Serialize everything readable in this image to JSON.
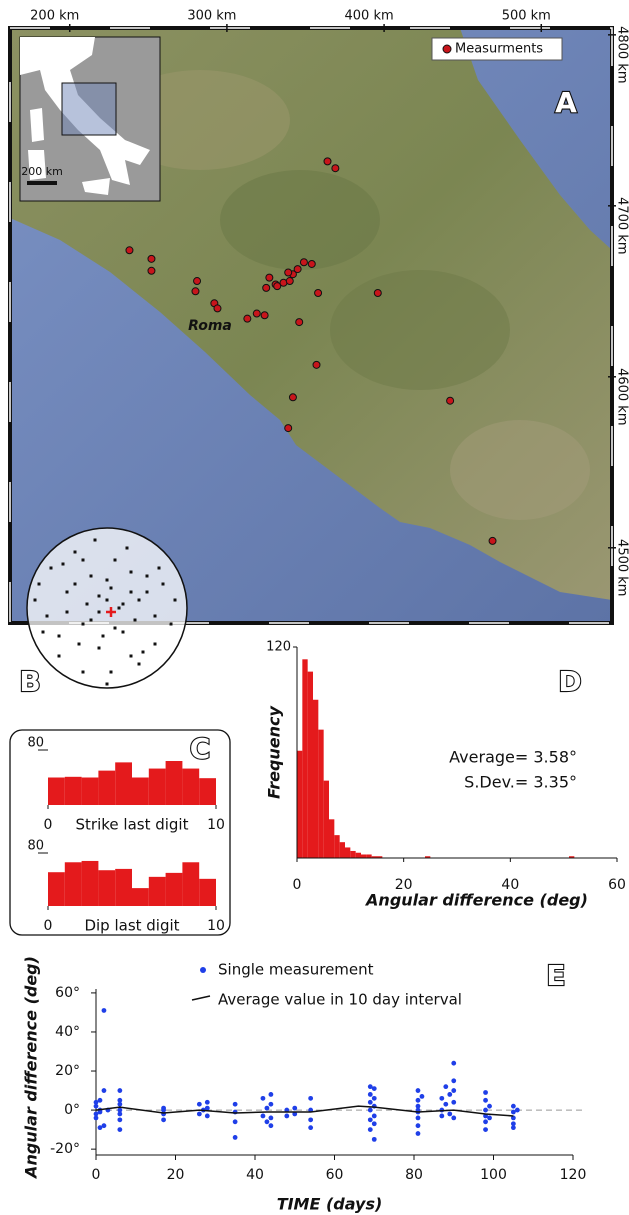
{
  "chart_data": [
    {
      "type": "map",
      "panel": "A",
      "place": "Roma",
      "inset_scale": "200 km",
      "legend": "upper right",
      "xlim": [
        162,
        545
      ],
      "ylim": [
        4456,
        4804
      ],
      "xticks": [
        {
          "value": 200,
          "label": "200 km"
        },
        {
          "value": 300,
          "label": "300 km"
        },
        {
          "value": 400,
          "label": "400 km"
        },
        {
          "value": 500,
          "label": "500 km"
        }
      ],
      "yticks": [
        {
          "value": 4800,
          "label": "4800 km"
        },
        {
          "value": 4700,
          "label": "4700 km"
        },
        {
          "value": 4600,
          "label": "4600 km"
        },
        {
          "value": 4500,
          "label": "4500 km"
        }
      ],
      "series": [
        {
          "name": "Measurments",
          "color": "#c8151b",
          "x": [
            364,
            369,
            238,
            252,
            252,
            281,
            280,
            292,
            294,
            313,
            319,
            324,
            327,
            331,
            325,
            332,
            336,
            340,
            342,
            345,
            349,
            354,
            339,
            358,
            396,
            346,
            357,
            342,
            339,
            442,
            469
          ],
          "values": [
            4726,
            4722,
            4674,
            4669,
            4662,
            4656,
            4650,
            4643,
            4640,
            4634,
            4637,
            4636,
            4658,
            4654,
            4652,
            4653,
            4655,
            4656,
            4660,
            4663,
            4667,
            4666,
            4661,
            4649,
            4649,
            4632,
            4607,
            4588,
            4570,
            4586,
            4504
          ]
        }
      ]
    },
    {
      "type": "stereonet",
      "panel": "B",
      "color": "#111",
      "x": [
        -0.9,
        -0.8,
        -0.7,
        -0.6,
        -0.5,
        -0.4,
        -0.3,
        -0.2,
        -0.1,
        0,
        0.1,
        0.2,
        0.3,
        0.4,
        0.5,
        0.6,
        0.7,
        0.8,
        -0.75,
        -0.55,
        -0.35,
        -0.15,
        0.05,
        0.25,
        0.45,
        0.65,
        -0.6,
        -0.4,
        -0.2,
        0,
        0.2,
        0.4,
        0.6,
        -0.5,
        -0.3,
        -0.1,
        0.1,
        0.3,
        0.5,
        -0.3,
        0,
        0.3,
        -0.85,
        0.85,
        -0.1,
        0.15,
        -0.25,
        0.35,
        0.05,
        -0.05
      ],
      "values": [
        0.1,
        -0.3,
        0.5,
        -0.6,
        0.2,
        0.7,
        -0.2,
        0.4,
        -0.5,
        0.1,
        0.6,
        -0.3,
        0.2,
        -0.7,
        0.4,
        -0.1,
        0.3,
        -0.2,
        -0.1,
        0.55,
        -0.45,
        0.85,
        -0.8,
        0.75,
        -0.55,
        0.5,
        -0.35,
        0.3,
        -0.15,
        0.35,
        0.05,
        0.1,
        -0.45,
        -0.05,
        0.6,
        0.15,
        -0.25,
        -0.6,
        0.2,
        -0.8,
        -0.95,
        0.45,
        0.3,
        0.1,
        -0.05,
        0.0,
        0.05,
        -0.15,
        0.25,
        -0.35
      ],
      "mean": {
        "x": 0.05,
        "y": -0.05,
        "color": "#e41a1c"
      }
    },
    {
      "type": "histogram",
      "panel": "C",
      "xlabel": "Strike last digit",
      "color": "#e41a1c",
      "bins": [
        0,
        1,
        2,
        3,
        4,
        5,
        6,
        7,
        8,
        9,
        10
      ],
      "values": [
        40,
        41,
        40,
        50,
        62,
        40,
        53,
        64,
        53,
        39
      ],
      "xlim": [
        0,
        10
      ],
      "ylim": [
        0,
        80
      ],
      "xticks": [
        0,
        10
      ],
      "yticks": [
        80
      ]
    },
    {
      "type": "histogram",
      "xlabel": "Dip last digit",
      "color": "#e41a1c",
      "bins": [
        0,
        1,
        2,
        3,
        4,
        5,
        6,
        7,
        8,
        9,
        10
      ],
      "values": [
        51,
        66,
        68,
        54,
        56,
        27,
        44,
        50,
        66,
        41
      ],
      "xlim": [
        0,
        10
      ],
      "ylim": [
        0,
        80
      ],
      "xticks": [
        0,
        10
      ],
      "yticks": [
        80
      ]
    },
    {
      "type": "histogram",
      "panel": "D",
      "xlabel": "Angular difference (deg)",
      "ylabel": "Frequency",
      "color": "#e41a1c",
      "annotations": [
        "Average= 3.58°",
        "S.Dev.= 3.35°"
      ],
      "bins": [
        0,
        1,
        2,
        3,
        4,
        5,
        6,
        7,
        8,
        9,
        10,
        11,
        12,
        13,
        14,
        15,
        16,
        17,
        18,
        19,
        20,
        21,
        22,
        23,
        24,
        25,
        26,
        27,
        28,
        29,
        30,
        31,
        32,
        33,
        34,
        35,
        36,
        37,
        38,
        39,
        40,
        41,
        42,
        43,
        44,
        45,
        46,
        47,
        48,
        49,
        50,
        51,
        52,
        53
      ],
      "values": [
        61,
        113,
        106,
        90,
        73,
        44,
        22,
        13,
        9,
        6,
        4,
        3,
        2,
        2,
        1,
        1,
        0,
        0,
        0,
        0,
        0,
        0,
        0,
        0,
        1,
        0,
        0,
        0,
        0,
        0,
        0,
        0,
        0,
        0,
        0,
        0,
        0,
        0,
        0,
        0,
        0,
        0,
        0,
        0,
        0,
        0,
        0,
        0,
        0,
        0,
        0,
        1,
        0
      ],
      "xlim": [
        0,
        60
      ],
      "ylim": [
        0,
        120
      ],
      "xticks": [
        0,
        20,
        40,
        60
      ],
      "yticks": [
        120
      ]
    },
    {
      "type": "scatter",
      "panel": "E",
      "xlabel": "TIME (days)",
      "ylabel": "Angular difference (deg)",
      "zero_line": true,
      "xlim": [
        0,
        120
      ],
      "ylim": [
        -23,
        62
      ],
      "xticks": [
        0,
        20,
        40,
        60,
        80,
        100,
        120
      ],
      "yticks": [
        {
          "value": -20,
          "label": "-20°"
        },
        {
          "value": 0,
          "label": "0°"
        },
        {
          "value": 20,
          "label": "20°"
        },
        {
          "value": 40,
          "label": "40°"
        },
        {
          "value": 60,
          "label": "60°"
        }
      ],
      "series": [
        {
          "name": "Single measurement",
          "style": "dot",
          "color": "#1f3fe8",
          "x": [
            0,
            0,
            0,
            0,
            1,
            1,
            1,
            1,
            2,
            2,
            2,
            3,
            6,
            6,
            6,
            6,
            6,
            6,
            6,
            17,
            17,
            17,
            17,
            26,
            26,
            27,
            28,
            28,
            28,
            35,
            35,
            35,
            35,
            42,
            42,
            43,
            43,
            44,
            44,
            44,
            44,
            48,
            48,
            50,
            50,
            54,
            54,
            54,
            54,
            69,
            69,
            69,
            69,
            69,
            69,
            70,
            70,
            70,
            70,
            70,
            70,
            81,
            81,
            81,
            81,
            81,
            81,
            81,
            81,
            82,
            87,
            87,
            87,
            88,
            88,
            89,
            89,
            90,
            90,
            90,
            90,
            90,
            98,
            98,
            98,
            98,
            98,
            98,
            99,
            99,
            105,
            105,
            105,
            105,
            105,
            106
          ],
          "values": [
            2,
            -2,
            4,
            -4,
            0,
            -1,
            5,
            -9,
            51,
            10,
            -8,
            0,
            10,
            3,
            -2,
            -5,
            -10,
            0,
            5,
            -2,
            -5,
            1,
            0,
            3,
            -2,
            0,
            4,
            -3,
            1,
            3,
            -1,
            -6,
            -14,
            6,
            -3,
            -6,
            1,
            3,
            -8,
            -4,
            8,
            0,
            -3,
            1,
            -2,
            6,
            -5,
            -9,
            0,
            12,
            8,
            4,
            0,
            -5,
            -10,
            11,
            6,
            2,
            -3,
            -15,
            -7,
            10,
            5,
            2,
            -1,
            -4,
            -8,
            -12,
            0,
            7,
            6,
            0,
            -3,
            12,
            3,
            8,
            -2,
            24,
            15,
            10,
            4,
            -4,
            9,
            5,
            0,
            -3,
            -6,
            -10,
            2,
            -4,
            2,
            -1,
            -4,
            -7,
            -9,
            0
          ]
        },
        {
          "name": "Average value in 10 day interval",
          "style": "line",
          "color": "#111",
          "x": [
            0,
            6,
            17,
            26,
            35,
            43,
            50,
            54,
            66,
            70,
            81,
            90,
            98,
            105
          ],
          "values": [
            0,
            1.5,
            -1.5,
            0,
            -1.5,
            -1,
            -1,
            -1,
            2,
            1.5,
            -1,
            0,
            -2,
            -3
          ]
        }
      ]
    }
  ]
}
